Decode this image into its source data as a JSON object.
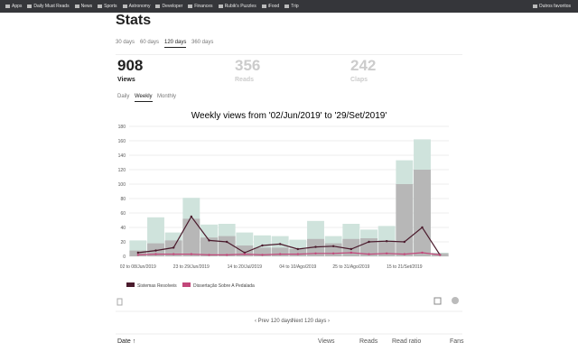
{
  "bookmarks": [
    "Apps",
    "Daily Must Reads",
    "News",
    "Sports",
    "Astronomy",
    "Developer",
    "Finances",
    "Rubik's Puzzles",
    "iFood",
    "Trip"
  ],
  "other_bookmarks": "Outros favoritos",
  "title": "Stats",
  "range_tabs": [
    "30 days",
    "60 days",
    "120 days",
    "360 days"
  ],
  "stats": [
    {
      "value": "908",
      "label": "Views"
    },
    {
      "value": "356",
      "label": "Reads"
    },
    {
      "value": "242",
      "label": "Claps"
    }
  ],
  "period_tabs": [
    "Daily",
    "Weekly",
    "Monthly"
  ],
  "chart_data": {
    "type": "bar",
    "title": "Weekly views from '02/Jun/2019' to '29/Set/2019'",
    "categories": [
      "02 to 08/Jun/2019",
      null,
      null,
      "23 to 29/Jun/2019",
      null,
      null,
      "14 to 20/Jul/2019",
      null,
      null,
      "04 to 10/Ago/2019",
      null,
      null,
      "25 to 31/Ago/2019",
      null,
      null,
      "15 to 21/Set/2019",
      null,
      null
    ],
    "bars": [
      {
        "color": "#cfe3dc",
        "values": [
          22,
          54,
          33,
          81,
          44,
          45,
          33,
          29,
          28,
          23,
          49,
          28,
          45,
          37,
          42,
          133,
          162,
          5
        ]
      },
      {
        "color": "#b7b7b7",
        "values": [
          8,
          18,
          22,
          52,
          26,
          28,
          15,
          12,
          12,
          10,
          24,
          18,
          24,
          25,
          22,
          100,
          120,
          4
        ]
      }
    ],
    "series": [
      {
        "name": "Sistemas Resolveis",
        "color": "#4a1a2c",
        "values": [
          5,
          8,
          12,
          55,
          22,
          20,
          5,
          15,
          17,
          10,
          13,
          14,
          10,
          20,
          21,
          20,
          40,
          2
        ]
      },
      {
        "name": "Dissertação Sobre A Pedalada",
        "color": "#c2477a",
        "values": [
          2,
          3,
          3,
          3,
          2,
          2,
          3,
          2,
          3,
          3,
          4,
          4,
          5,
          3,
          4,
          3,
          5,
          2
        ]
      }
    ],
    "ylim": [
      0,
      180
    ],
    "yticks": [
      0,
      20,
      40,
      60,
      80,
      100,
      120,
      140,
      160,
      180
    ],
    "grid": true
  },
  "pager": {
    "prev": "‹ Prev 120 days",
    "next": "Next 120 days ›"
  },
  "table_headers": [
    "Date ↑",
    "Views",
    "Reads",
    "Read ratio",
    "Fans"
  ]
}
